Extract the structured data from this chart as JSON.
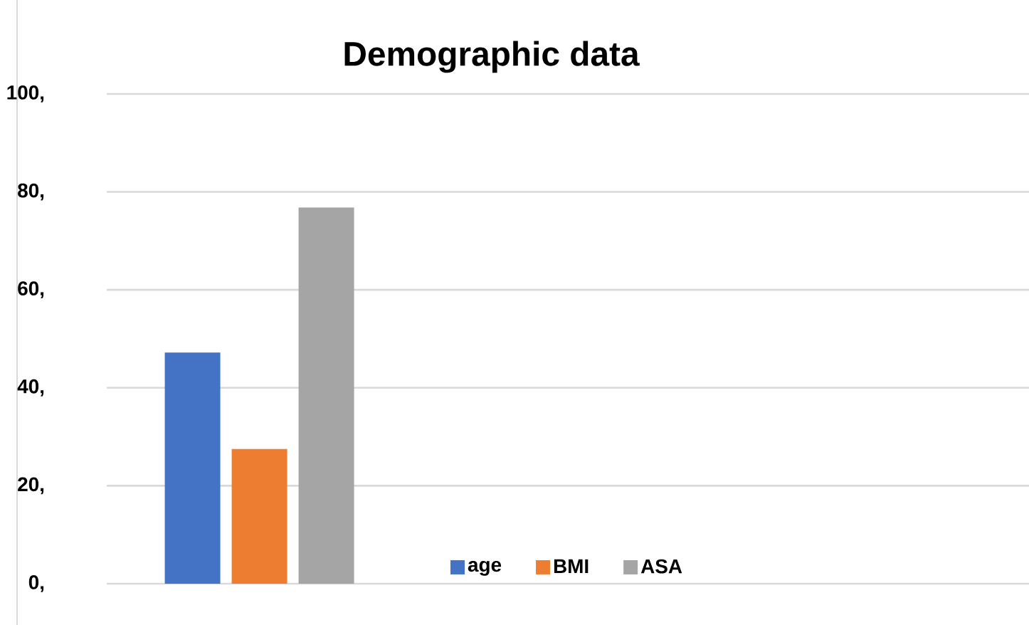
{
  "chart_data": {
    "type": "bar",
    "title": "Demographic data",
    "categories": [
      null
    ],
    "series": [
      {
        "name": "age",
        "color": "#4472c4",
        "values": [
          47.2
        ]
      },
      {
        "name": "BMI",
        "color": "#ed7d31",
        "values": [
          27.5
        ]
      },
      {
        "name": "ASA",
        "color": "#a5a5a5",
        "values": [
          76.8
        ]
      }
    ],
    "ylim": [
      0,
      100
    ],
    "yticks": [
      {
        "value": 0,
        "label": "0,"
      },
      {
        "value": 20,
        "label": "20,"
      },
      {
        "value": 40,
        "label": "40,"
      },
      {
        "value": 60,
        "label": "60,"
      },
      {
        "value": 80,
        "label": "80,"
      },
      {
        "value": 100,
        "label": "100,"
      }
    ],
    "grid": "y",
    "legend": "bottom"
  }
}
